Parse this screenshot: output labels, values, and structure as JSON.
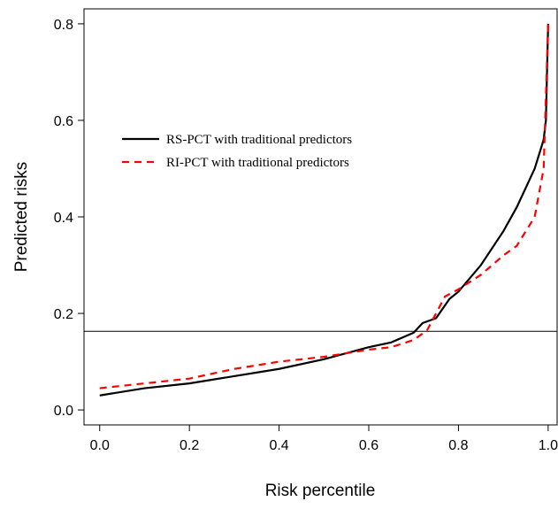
{
  "chart_data": {
    "type": "line",
    "xlabel": "Risk percentile",
    "ylabel": "Predicted risks",
    "xlim": [
      -0.035,
      1.02
    ],
    "ylim": [
      -0.031,
      0.831
    ],
    "xticks": [
      {
        "value": 0,
        "label": "0.0"
      },
      0.2,
      0.4,
      0.6,
      0.8,
      {
        "value": 1,
        "label": "1.0"
      }
    ],
    "yticks": [
      {
        "value": 0,
        "label": "0.0"
      },
      0.2,
      0.4,
      0.6,
      0.8
    ],
    "hline": 0.163,
    "series": [
      {
        "name": "RS-PCT with traditional predictors",
        "color": "#000000",
        "dash": "solid",
        "x": [
          0,
          0.1,
          0.2,
          0.3,
          0.4,
          0.5,
          0.6,
          0.65,
          0.7,
          0.72,
          0.75,
          0.78,
          0.8,
          0.85,
          0.9,
          0.93,
          0.95,
          0.97,
          0.99,
          0.995,
          1.0
        ],
        "values": [
          0.03,
          0.045,
          0.055,
          0.07,
          0.085,
          0.105,
          0.13,
          0.14,
          0.16,
          0.18,
          0.19,
          0.23,
          0.245,
          0.3,
          0.37,
          0.42,
          0.46,
          0.5,
          0.56,
          0.6,
          0.8
        ]
      },
      {
        "name": "RI-PCT with traditional predictors",
        "color": "#ff0000",
        "dash": "dashed",
        "x": [
          0,
          0.1,
          0.2,
          0.3,
          0.4,
          0.5,
          0.6,
          0.65,
          0.7,
          0.73,
          0.75,
          0.77,
          0.8,
          0.85,
          0.9,
          0.93,
          0.95,
          0.97,
          0.98,
          0.99,
          1.0
        ],
        "values": [
          0.045,
          0.055,
          0.065,
          0.085,
          0.1,
          0.11,
          0.125,
          0.13,
          0.145,
          0.165,
          0.2,
          0.235,
          0.25,
          0.28,
          0.32,
          0.34,
          0.37,
          0.4,
          0.45,
          0.5,
          0.8
        ]
      }
    ]
  }
}
